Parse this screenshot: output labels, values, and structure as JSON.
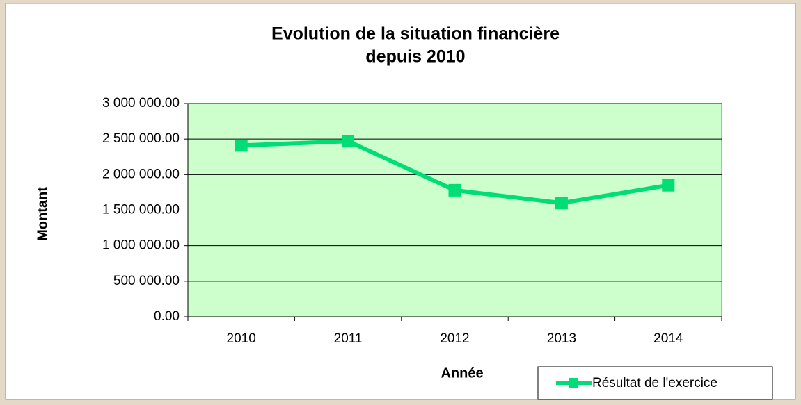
{
  "chart_data": {
    "type": "line",
    "title": [
      "Evolution de la situation financière",
      "depuis 2010"
    ],
    "xlabel": "Année",
    "ylabel": "Montant",
    "categories": [
      "2010",
      "2011",
      "2012",
      "2013",
      "2014"
    ],
    "series": [
      {
        "name": "Résultat de l'exercice",
        "color": "#00dd77",
        "values": [
          2410000,
          2470000,
          1780000,
          1600000,
          1850000
        ]
      }
    ],
    "ylim": [
      0,
      3000000
    ],
    "yticks": [
      {
        "value": 0,
        "label": "0.00"
      },
      {
        "value": 500000,
        "label": "500 000.00"
      },
      {
        "value": 1000000,
        "label": "1 000 000.00"
      },
      {
        "value": 1500000,
        "label": "1 500 000.00"
      },
      {
        "value": 2000000,
        "label": "2 000 000.00"
      },
      {
        "value": 2500000,
        "label": "2 500 000.00"
      },
      {
        "value": 3000000,
        "label": "3 000 000.00"
      }
    ],
    "grid": true,
    "plot_background": "#ccffcc",
    "legend": "lower right"
  }
}
